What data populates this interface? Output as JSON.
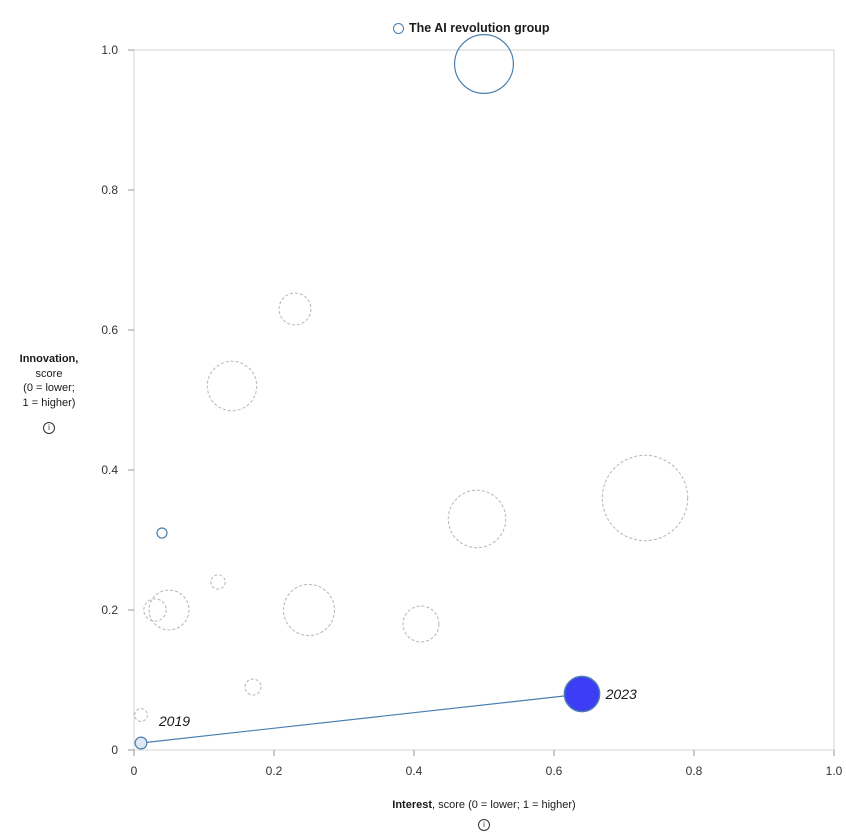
{
  "legend": {
    "label": "The AI revolution group"
  },
  "axes": {
    "y_title_bold": "Innovation,",
    "y_title_rest": [
      "score",
      "(0 = lower;",
      "1 = higher)"
    ],
    "x_title_bold": "Interest",
    "x_title_rest": ", score (0 = lower; 1 = higher)",
    "info_icon": "info-icon"
  },
  "colors": {
    "highlight_fill": "#3d3df5",
    "highlight_stroke": "#4a7fb0",
    "context_stroke": "#b5b5b5",
    "trajectory_line": "#4a7fb0"
  },
  "chart_data": {
    "type": "scatter",
    "subtype": "bubble",
    "title": "",
    "xlabel": "Interest, score (0 = lower; 1 = higher)",
    "ylabel": "Innovation, score (0 = lower; 1 = higher)",
    "xlim": [
      0,
      1
    ],
    "ylim": [
      0,
      1
    ],
    "x_ticks": [
      0,
      0.2,
      0.4,
      0.6,
      0.8,
      1.0
    ],
    "x_tick_labels": [
      "0",
      "0.2",
      "0.4",
      "0.6",
      "0.8",
      "1.0"
    ],
    "y_ticks": [
      0,
      0.2,
      0.4,
      0.6,
      0.8,
      1.0
    ],
    "y_tick_labels": [
      "0",
      "0.2",
      "0.4",
      "0.6",
      "0.8",
      "1.0"
    ],
    "grid": false,
    "legend_position": "top-center",
    "series": [
      {
        "name": "The AI revolution group",
        "style": "highlight",
        "points": [
          {
            "x": 0.01,
            "y": 0.01,
            "size": 0.2,
            "label": "2019"
          },
          {
            "x": 0.64,
            "y": 0.08,
            "size": 0.6,
            "label": "2023",
            "filled": true
          },
          {
            "x": 0.04,
            "y": 0.31,
            "size": 0.17
          },
          {
            "x": 0.5,
            "y": 0.98,
            "size": 1.0
          }
        ],
        "trajectory": [
          {
            "x": 0.01,
            "y": 0.01
          },
          {
            "x": 0.64,
            "y": 0.08
          }
        ]
      },
      {
        "style": "context",
        "points": [
          {
            "x": 0.01,
            "y": 0.05,
            "size": 0.16
          },
          {
            "x": 0.03,
            "y": 0.2,
            "size": 0.28
          },
          {
            "x": 0.05,
            "y": 0.2,
            "size": 0.5
          },
          {
            "x": 0.12,
            "y": 0.24,
            "size": 0.18
          },
          {
            "x": 0.14,
            "y": 0.52,
            "size": 0.62
          },
          {
            "x": 0.17,
            "y": 0.09,
            "size": 0.2
          },
          {
            "x": 0.23,
            "y": 0.63,
            "size": 0.4
          },
          {
            "x": 0.25,
            "y": 0.2,
            "size": 0.64
          },
          {
            "x": 0.41,
            "y": 0.18,
            "size": 0.45
          },
          {
            "x": 0.49,
            "y": 0.33,
            "size": 0.72
          },
          {
            "x": 0.73,
            "y": 0.36,
            "size": 1.07
          }
        ]
      }
    ]
  }
}
